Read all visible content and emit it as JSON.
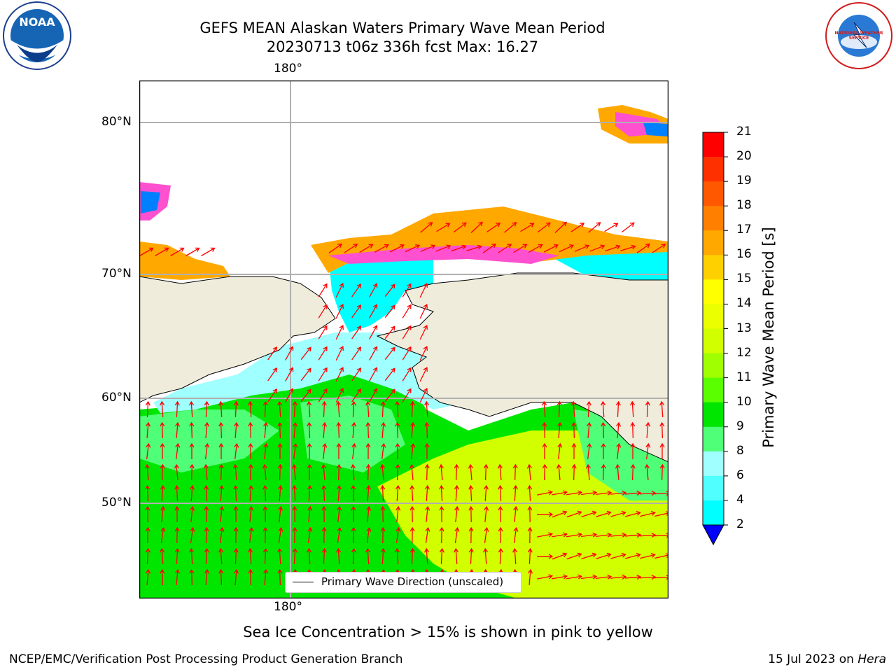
{
  "title": {
    "line1": "GEFS MEAN Alaskan Waters Primary Wave Mean Period",
    "line2": "20230713 t06z 336h fcst   Max: 16.27"
  },
  "logos": {
    "left": {
      "icon": "noaa-logo",
      "text": "NOAA"
    },
    "right": {
      "icon": "nws-logo",
      "text": "NATIONAL WEATHER SERVICE"
    }
  },
  "map": {
    "lon_labels_top": [
      "180°"
    ],
    "lon_labels_bottom": [
      "180°"
    ],
    "lat_labels": [
      "80°N",
      "70°N",
      "60°N",
      "50°N"
    ],
    "legend_label": "Primary Wave Direction (unscaled)",
    "colors": {
      "land": "#efecdc",
      "arrow": "#ff0000",
      "grid": "#b0b0b0"
    }
  },
  "colorbar": {
    "label": "Primary Wave Mean Period [s]",
    "ticks": [
      "21",
      "20",
      "19",
      "18",
      "17",
      "16",
      "15",
      "14",
      "13",
      "12",
      "11",
      "10",
      "9",
      "8",
      "6",
      "4",
      "2"
    ],
    "colors": [
      "#ff0000",
      "#ff3000",
      "#ff5800",
      "#ff8000",
      "#ffa800",
      "#ffd000",
      "#ffff00",
      "#ecff00",
      "#d2ff00",
      "#a0ff00",
      "#5aff00",
      "#00e600",
      "#50ff78",
      "#a0ffff",
      "#50ffff",
      "#00ffff",
      "#0080ff",
      "#0000ff"
    ]
  },
  "subcaption": "Sea Ice Concentration > 15% is shown in pink to yellow",
  "footer": {
    "left": "NCEP/EMC/Verification Post Processing Product Generation Branch",
    "right_date": "15 Jul 2023 on ",
    "right_host": "Hera"
  }
}
